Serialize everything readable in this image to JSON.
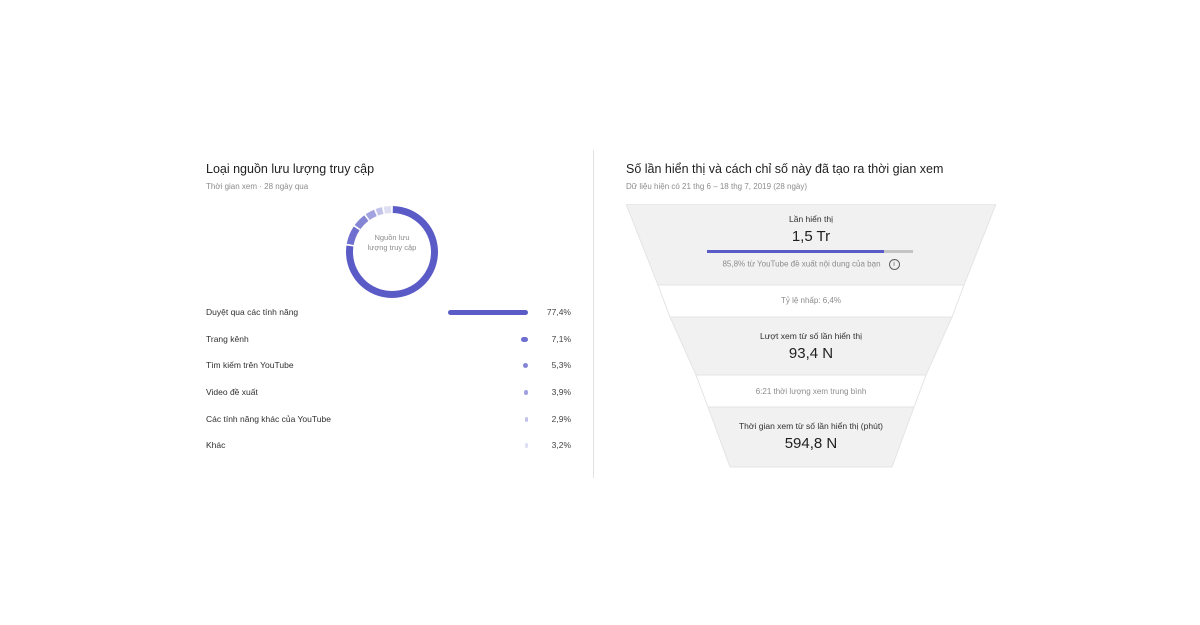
{
  "traffic_card": {
    "title": "Loại nguồn lưu lượng truy cập",
    "subtitle": "Thời gian xem · 28 ngày qua",
    "donut_center_label": "Nguồn lưu lượng truy cập",
    "accent_color": "#5b5bc8",
    "rows": [
      {
        "label": "Duyệt qua các tính năng",
        "value": "77,4%",
        "share": 77.4,
        "color": "#5b5bc8"
      },
      {
        "label": "Trang kênh",
        "value": "7,1%",
        "share": 7.1,
        "color": "#6f6fcf"
      },
      {
        "label": "Tìm kiếm trên YouTube",
        "value": "5,3%",
        "share": 5.3,
        "color": "#8585d6"
      },
      {
        "label": "Video đề xuất",
        "value": "3,9%",
        "share": 3.9,
        "color": "#a2a2e0"
      },
      {
        "label": "Các tính năng khác của YouTube",
        "value": "2,9%",
        "share": 2.9,
        "color": "#c3c3ea"
      },
      {
        "label": "Khác",
        "value": "3,2%",
        "share": 3.2,
        "color": "#dedef2"
      }
    ]
  },
  "impressions_card": {
    "title": "Số lần hiển thị và cách chỉ số này đã tạo ra thời gian xem",
    "subtitle": "Dữ liệu hiện có 21 thg 6 – 18 thg 7, 2019 (28 ngày)",
    "impressions_label": "Lần hiển thị",
    "impressions_value": "1,5 Tr",
    "recommend_note": "85,8% từ YouTube đề xuất nội dung của bạn",
    "recommend_share": 85.8,
    "ctr_note": "Tỷ lệ nhấp: 6,4%",
    "views_label": "Lượt xem từ số lần hiển thị",
    "views_value": "93,4 N",
    "avg_watch_note": "6:21 thời lượng xem trung bình",
    "watch_time_label": "Thời gian xem từ số lần hiển thị (phút)",
    "watch_time_value": "594,8 N",
    "info_icon": "info-icon"
  }
}
